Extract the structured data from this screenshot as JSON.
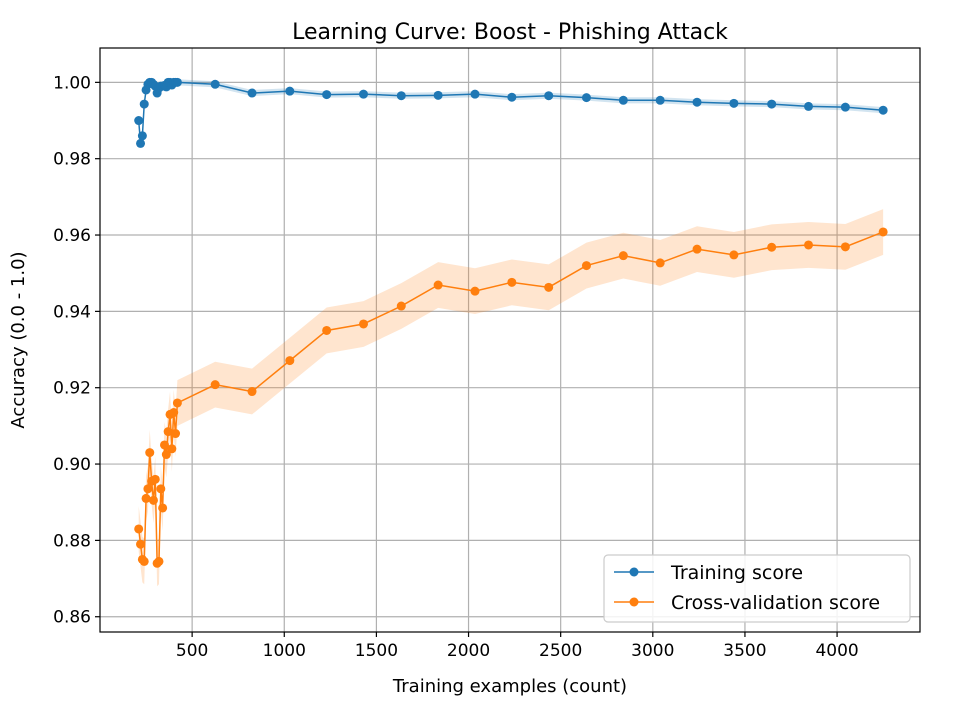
{
  "chart_data": {
    "type": "line",
    "title": "Learning Curve: Boost - Phishing Attack",
    "xlabel": "Training examples (count)",
    "ylabel": "Accuracy (0.0 - 1.0)",
    "xlim": [
      0,
      4450
    ],
    "ylim": [
      0.856,
      1.009
    ],
    "xticks": [
      500,
      1000,
      1500,
      2000,
      2500,
      3000,
      3500,
      4000
    ],
    "yticks": [
      0.86,
      0.88,
      0.9,
      0.92,
      0.94,
      0.96,
      0.98,
      1.0
    ],
    "xtick_labels": [
      "500",
      "1000",
      "1500",
      "2000",
      "2500",
      "3000",
      "3500",
      "4000"
    ],
    "ytick_labels": [
      "0.86",
      "0.88",
      "0.90",
      "0.92",
      "0.94",
      "0.96",
      "0.98",
      "1.00"
    ],
    "grid": true,
    "legend_position": "lower-right",
    "series": [
      {
        "name": "Training score",
        "color": "#1f77b4",
        "x": [
          210,
          220,
          230,
          240,
          250,
          260,
          270,
          280,
          290,
          300,
          310,
          320,
          330,
          340,
          350,
          360,
          370,
          380,
          390,
          400,
          410,
          420,
          625,
          825,
          1030,
          1230,
          1430,
          1635,
          1835,
          2035,
          2235,
          2435,
          2640,
          2840,
          3040,
          3240,
          3440,
          3645,
          3845,
          4045,
          4250
        ],
        "y": [
          0.99,
          0.984,
          0.986,
          0.9943,
          0.998,
          0.9995,
          1.0,
          1.0,
          0.9995,
          0.999,
          0.9972,
          0.9985,
          0.999,
          0.999,
          0.9992,
          0.9988,
          1.0,
          1.0,
          0.9993,
          1.0,
          1.0,
          1.0,
          0.9995,
          0.9972,
          0.9977,
          0.9968,
          0.9969,
          0.9965,
          0.9966,
          0.9969,
          0.9961,
          0.9965,
          0.996,
          0.9953,
          0.9953,
          0.9948,
          0.9945,
          0.9943,
          0.9937,
          0.9935,
          0.9927
        ],
        "band": 0.0008
      },
      {
        "name": "Cross-validation score",
        "color": "#ff7f0e",
        "x": [
          210,
          220,
          230,
          240,
          250,
          260,
          270,
          280,
          290,
          300,
          310,
          320,
          330,
          340,
          350,
          360,
          370,
          380,
          390,
          400,
          410,
          420,
          625,
          825,
          1030,
          1230,
          1430,
          1635,
          1835,
          2035,
          2235,
          2435,
          2640,
          2840,
          3040,
          3240,
          3440,
          3645,
          3845,
          4045,
          4250
        ],
        "y": [
          0.883,
          0.879,
          0.875,
          0.8745,
          0.891,
          0.8935,
          0.903,
          0.8955,
          0.8905,
          0.896,
          0.874,
          0.8745,
          0.8935,
          0.8885,
          0.905,
          0.9025,
          0.9085,
          0.913,
          0.904,
          0.9135,
          0.908,
          0.916,
          0.9208,
          0.919,
          0.9271,
          0.935,
          0.9367,
          0.9414,
          0.9469,
          0.9453,
          0.9476,
          0.9463,
          0.952,
          0.9546,
          0.9527,
          0.9563,
          0.9548,
          0.9568,
          0.9574,
          0.9569,
          0.9608
        ],
        "band": 0.006
      }
    ]
  }
}
